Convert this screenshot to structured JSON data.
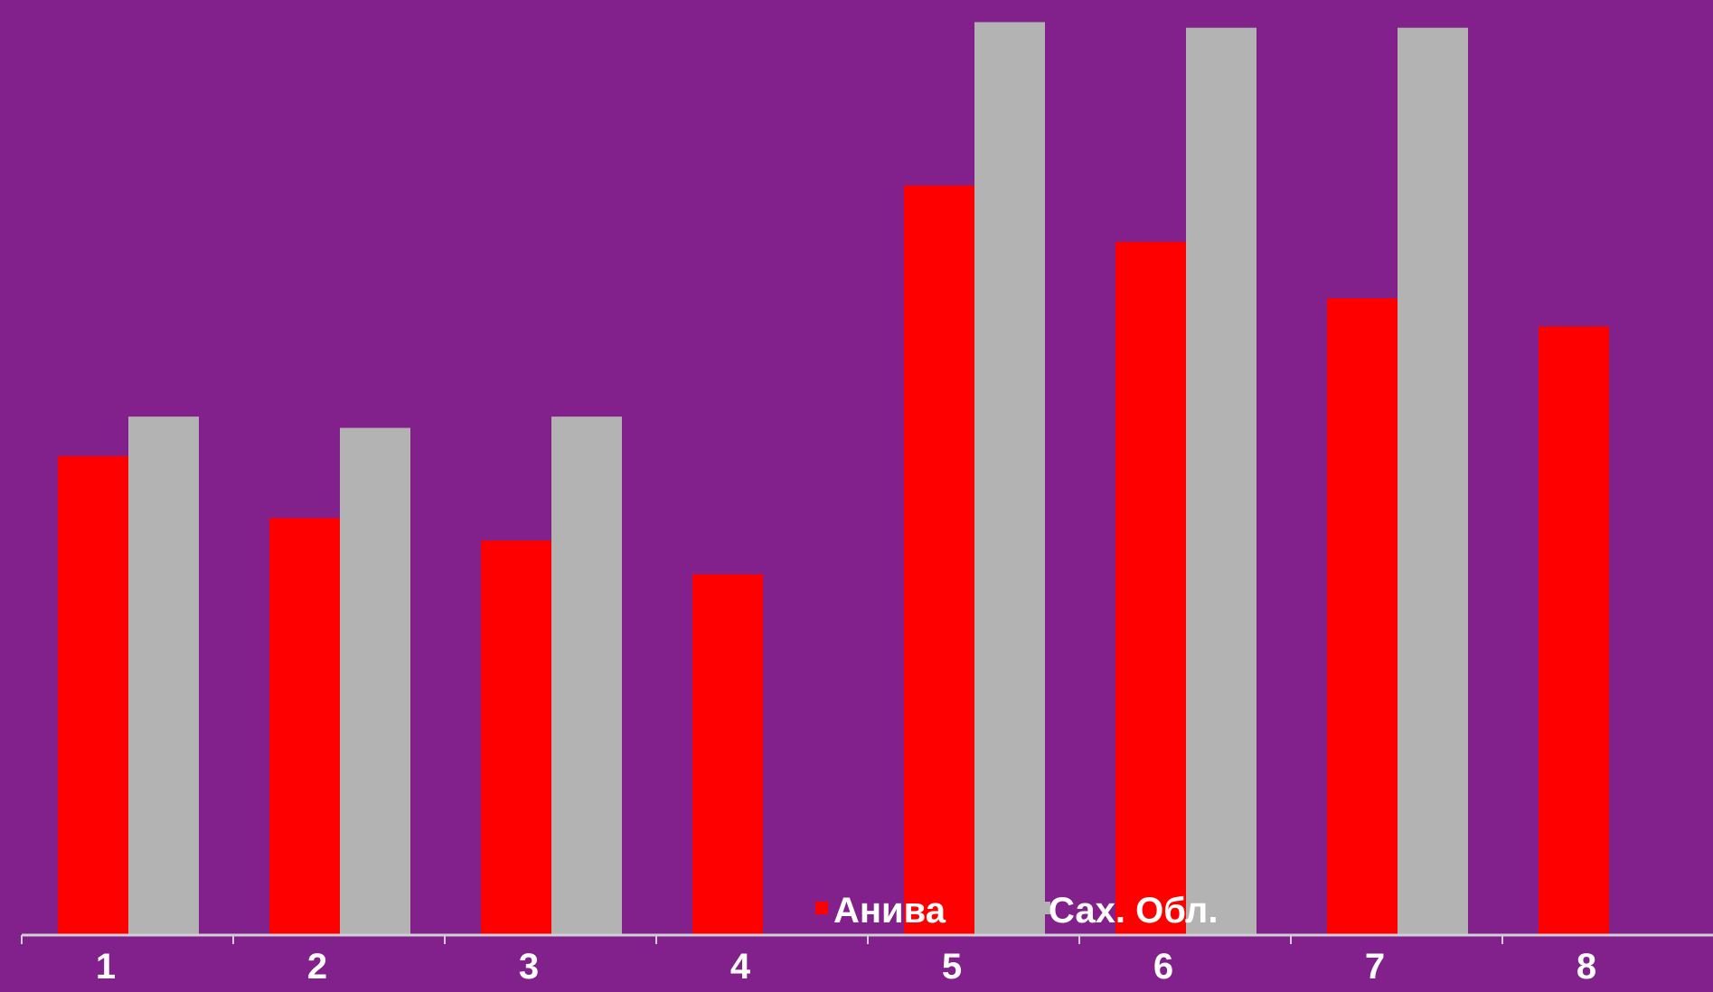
{
  "chart_data": {
    "type": "bar",
    "title": "",
    "xlabel": "",
    "ylabel": "",
    "categories": [
      "1",
      "2",
      "3",
      "4",
      "5",
      "6",
      "7",
      "8"
    ],
    "series": [
      {
        "name": "Анива",
        "color": "#ff0000",
        "values": [
          85,
          74,
          70,
          64,
          133,
          123,
          113,
          108
        ]
      },
      {
        "name": "Сах. Обл.",
        "color": "#b3b3b3",
        "values": [
          92,
          90,
          92,
          null,
          162,
          161,
          161,
          null
        ]
      }
    ],
    "ylim": [
      0,
      164
    ],
    "grid": false,
    "legend_position": "bottom-center",
    "axis_color": "#cfcfd6",
    "background": "#82218b"
  }
}
